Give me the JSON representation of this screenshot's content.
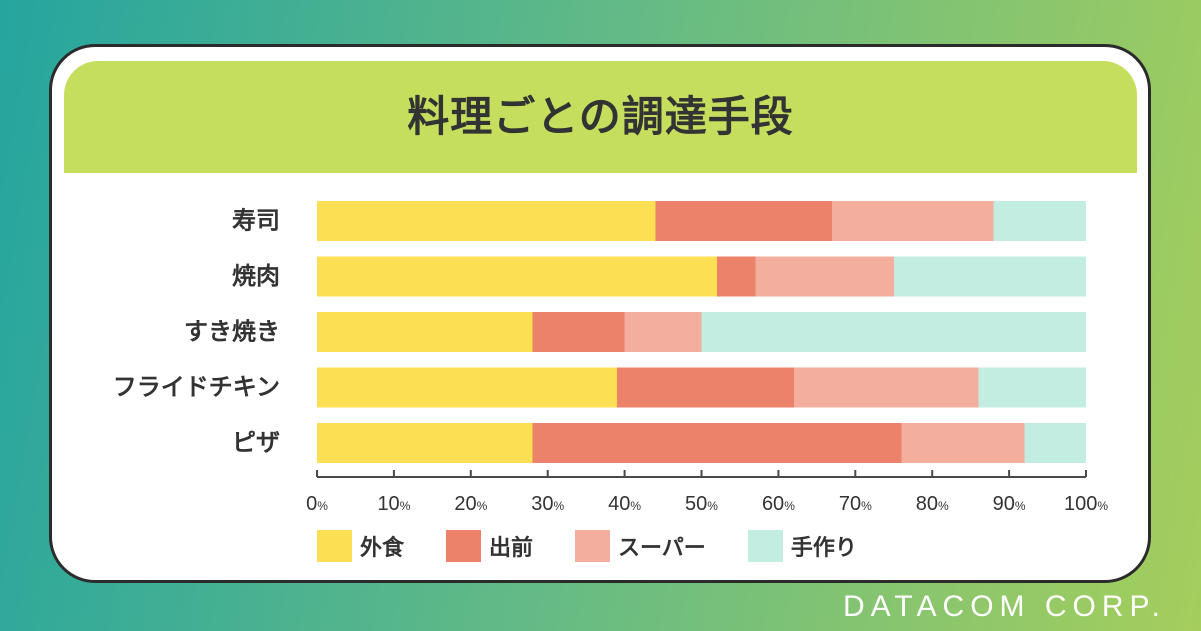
{
  "theme": {
    "background_start": "#25a59f",
    "background_mid": "#63ba86",
    "background_end": "#a5ce5c",
    "banner": "#c6de5d",
    "card_border": "#2b2b2b",
    "text": "#333333"
  },
  "chart_data": {
    "type": "bar",
    "orientation": "horizontal",
    "stacking": "percent",
    "title": "料理ごとの調達手段",
    "categories": [
      "寿司",
      "焼肉",
      "すき焼き",
      "フライドチキン",
      "ピザ"
    ],
    "series": [
      {
        "name": "外食",
        "color": "#fddf53",
        "values": [
          44,
          52,
          28,
          39,
          28
        ]
      },
      {
        "name": "出前",
        "color": "#ec826a",
        "values": [
          23,
          5,
          12,
          23,
          48
        ]
      },
      {
        "name": "スーパー",
        "color": "#f3ae9d",
        "values": [
          21,
          18,
          10,
          24,
          16
        ]
      },
      {
        "name": "手作り",
        "color": "#c4ede1",
        "values": [
          12,
          25,
          50,
          14,
          8
        ]
      }
    ],
    "xlim": [
      0,
      100
    ],
    "xticks": [
      "0%",
      "10%",
      "20%",
      "30%",
      "40%",
      "50%",
      "60%",
      "70%",
      "80%",
      "90%",
      "100%"
    ],
    "grid": false,
    "legend": "bottom-left"
  },
  "footer": {
    "brand": "DATACOM CORP."
  }
}
